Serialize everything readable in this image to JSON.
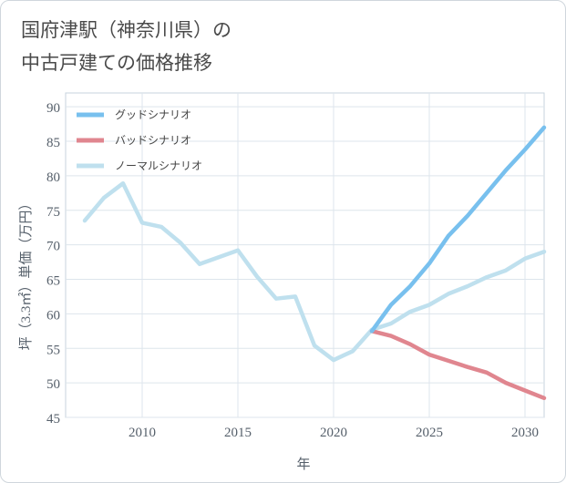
{
  "title_lines": [
    "国府津駅（神奈川県）の",
    "中古戸建ての価格推移"
  ],
  "chart_data": {
    "type": "line",
    "title": "国府津駅（神奈川県）の中古戸建ての価格推移",
    "xlabel": "年",
    "ylabel": "坪（3.3㎡）単価（万円）",
    "xlim": [
      2006,
      2031
    ],
    "ylim": [
      45,
      92
    ],
    "xticks": [
      2010,
      2015,
      2020,
      2025,
      2030
    ],
    "yticks": [
      45,
      50,
      55,
      60,
      65,
      70,
      75,
      80,
      85,
      90
    ],
    "grid": true,
    "legend_position": "top-left",
    "series": [
      {
        "name": "グッドシナリオ",
        "color": "#78c0ee",
        "x": [
          2022,
          2023,
          2024,
          2025,
          2026,
          2027,
          2028,
          2029,
          2030,
          2031
        ],
        "y": [
          57.5,
          61.3,
          64.0,
          67.3,
          71.3,
          74.2,
          77.5,
          80.8,
          83.8,
          87.0
        ]
      },
      {
        "name": "バッドシナリオ",
        "color": "#e0868f",
        "x": [
          2022,
          2023,
          2024,
          2025,
          2026,
          2027,
          2028,
          2029,
          2030,
          2031
        ],
        "y": [
          57.5,
          56.8,
          55.6,
          54.1,
          53.2,
          52.3,
          51.5,
          50.0,
          48.9,
          47.8
        ]
      },
      {
        "name": "ノーマルシナリオ",
        "color": "#bfe0ee",
        "x": [
          2007,
          2008,
          2009,
          2010,
          2011,
          2012,
          2013,
          2014,
          2015,
          2016,
          2017,
          2018,
          2019,
          2020,
          2021,
          2022,
          2023,
          2024,
          2025,
          2026,
          2027,
          2028,
          2029,
          2030,
          2031
        ],
        "y": [
          73.5,
          76.8,
          78.9,
          73.2,
          72.6,
          70.3,
          67.2,
          68.2,
          69.2,
          65.4,
          62.2,
          62.5,
          55.4,
          53.3,
          54.6,
          57.7,
          58.6,
          60.3,
          61.3,
          62.9,
          64.0,
          65.3,
          66.3,
          68.0,
          69.0
        ]
      }
    ]
  }
}
